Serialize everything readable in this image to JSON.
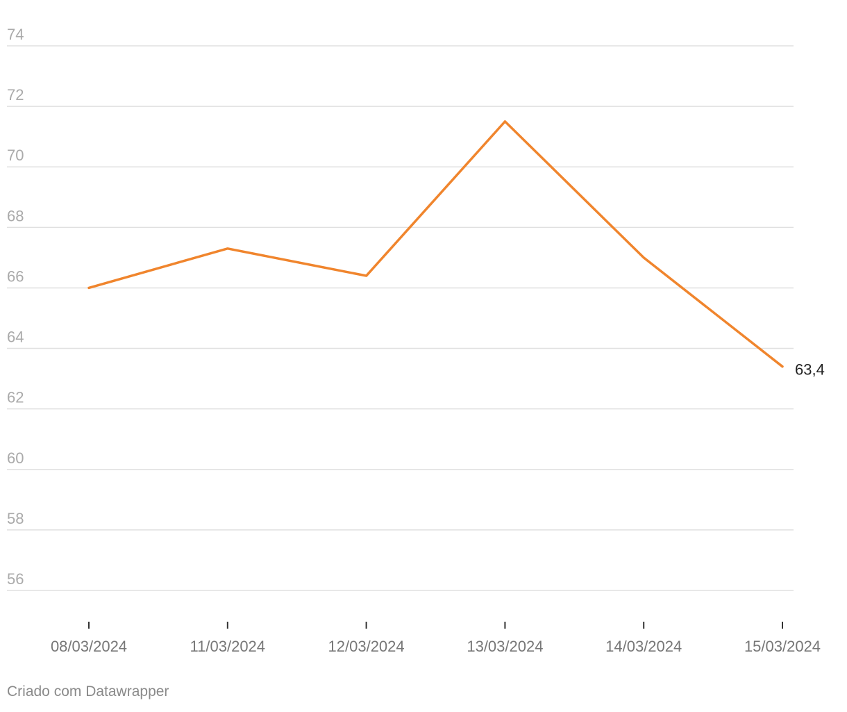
{
  "chart_data": {
    "type": "line",
    "title": "",
    "xlabel": "",
    "ylabel": "",
    "categories": [
      "08/03/2024",
      "11/03/2024",
      "12/03/2024",
      "13/03/2024",
      "14/03/2024",
      "15/03/2024"
    ],
    "series": [
      {
        "values": [
          66.0,
          67.3,
          66.4,
          71.5,
          67.0,
          63.4
        ],
        "color": "#F0852D"
      }
    ],
    "end_label": "63,4",
    "y_ticks": [
      56,
      58,
      60,
      62,
      64,
      66,
      68,
      70,
      72,
      74
    ],
    "ylim": [
      56,
      74
    ],
    "grid": true,
    "legend": "none"
  },
  "footer": {
    "credit": "Criado com Datawrapper"
  },
  "colors": {
    "line": "#F0852D",
    "grid": "#e0e0e0",
    "tick_label": "#aaaaaa",
    "x_label": "#777777",
    "end_label": "#222222"
  }
}
